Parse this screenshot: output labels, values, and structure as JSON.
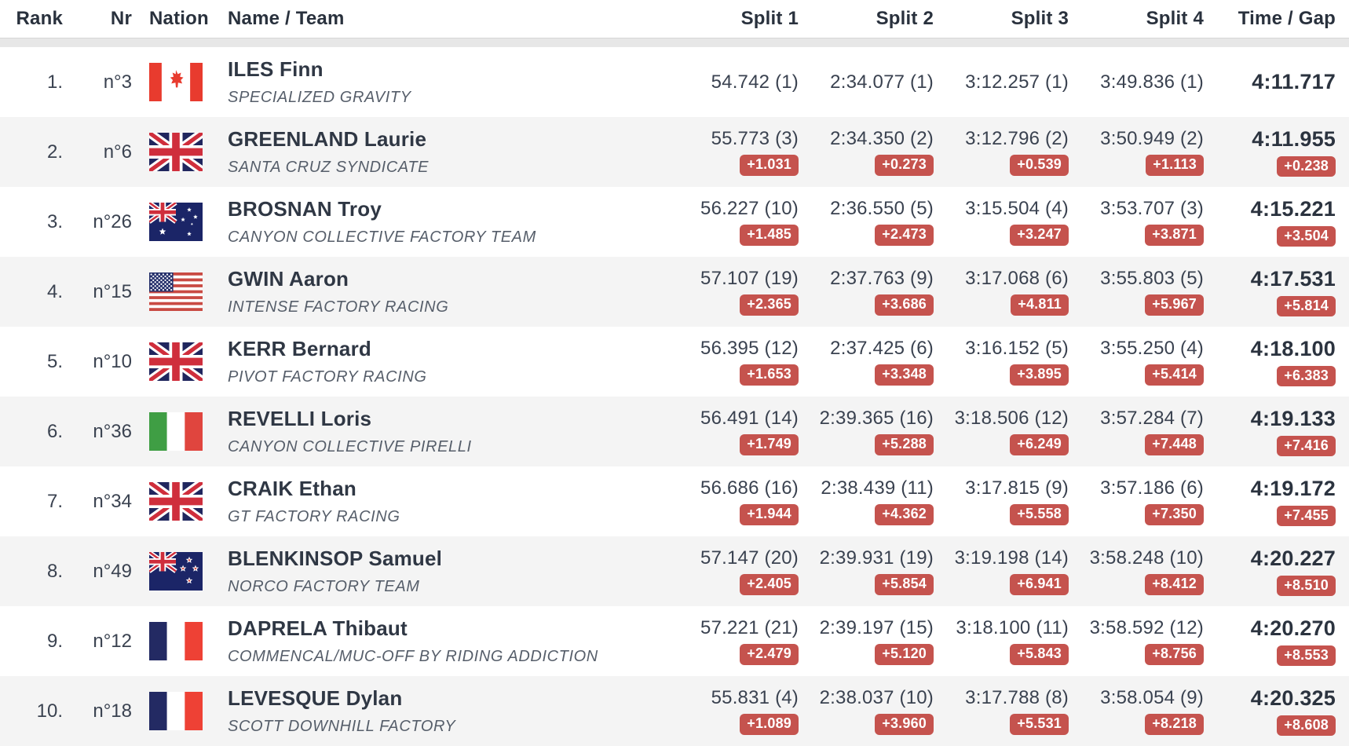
{
  "table": {
    "columns": [
      "Rank",
      "Nr",
      "Nation",
      "Name / Team",
      "Split 1",
      "Split 2",
      "Split 3",
      "Split 4",
      "Time / Gap"
    ],
    "rows": [
      {
        "rank": "1.",
        "nr": "n°3",
        "nation": "ca",
        "name": "ILES Finn",
        "team": "SPECIALIZED GRAVITY",
        "splits": [
          {
            "value": "54.742 (1)",
            "gap": null
          },
          {
            "value": "2:34.077 (1)",
            "gap": null
          },
          {
            "value": "3:12.257 (1)",
            "gap": null
          },
          {
            "value": "3:49.836 (1)",
            "gap": null
          }
        ],
        "total": {
          "value": "4:11.717",
          "gap": null
        }
      },
      {
        "rank": "2.",
        "nr": "n°6",
        "nation": "gb",
        "name": "GREENLAND Laurie",
        "team": "SANTA CRUZ SYNDICATE",
        "splits": [
          {
            "value": "55.773 (3)",
            "gap": "+1.031"
          },
          {
            "value": "2:34.350 (2)",
            "gap": "+0.273"
          },
          {
            "value": "3:12.796 (2)",
            "gap": "+0.539"
          },
          {
            "value": "3:50.949 (2)",
            "gap": "+1.113"
          }
        ],
        "total": {
          "value": "4:11.955",
          "gap": "+0.238"
        }
      },
      {
        "rank": "3.",
        "nr": "n°26",
        "nation": "au",
        "name": "BROSNAN Troy",
        "team": "CANYON COLLECTIVE FACTORY TEAM",
        "splits": [
          {
            "value": "56.227 (10)",
            "gap": "+1.485"
          },
          {
            "value": "2:36.550 (5)",
            "gap": "+2.473"
          },
          {
            "value": "3:15.504 (4)",
            "gap": "+3.247"
          },
          {
            "value": "3:53.707 (3)",
            "gap": "+3.871"
          }
        ],
        "total": {
          "value": "4:15.221",
          "gap": "+3.504"
        }
      },
      {
        "rank": "4.",
        "nr": "n°15",
        "nation": "us",
        "name": "GWIN Aaron",
        "team": "INTENSE FACTORY RACING",
        "splits": [
          {
            "value": "57.107 (19)",
            "gap": "+2.365"
          },
          {
            "value": "2:37.763 (9)",
            "gap": "+3.686"
          },
          {
            "value": "3:17.068 (6)",
            "gap": "+4.811"
          },
          {
            "value": "3:55.803 (5)",
            "gap": "+5.967"
          }
        ],
        "total": {
          "value": "4:17.531",
          "gap": "+5.814"
        }
      },
      {
        "rank": "5.",
        "nr": "n°10",
        "nation": "gb",
        "name": "KERR Bernard",
        "team": "PIVOT FACTORY RACING",
        "splits": [
          {
            "value": "56.395 (12)",
            "gap": "+1.653"
          },
          {
            "value": "2:37.425 (6)",
            "gap": "+3.348"
          },
          {
            "value": "3:16.152 (5)",
            "gap": "+3.895"
          },
          {
            "value": "3:55.250 (4)",
            "gap": "+5.414"
          }
        ],
        "total": {
          "value": "4:18.100",
          "gap": "+6.383"
        }
      },
      {
        "rank": "6.",
        "nr": "n°36",
        "nation": "it",
        "name": "REVELLI Loris",
        "team": "CANYON COLLECTIVE PIRELLI",
        "splits": [
          {
            "value": "56.491 (14)",
            "gap": "+1.749"
          },
          {
            "value": "2:39.365 (16)",
            "gap": "+5.288"
          },
          {
            "value": "3:18.506 (12)",
            "gap": "+6.249"
          },
          {
            "value": "3:57.284 (7)",
            "gap": "+7.448"
          }
        ],
        "total": {
          "value": "4:19.133",
          "gap": "+7.416"
        }
      },
      {
        "rank": "7.",
        "nr": "n°34",
        "nation": "gb",
        "name": "CRAIK Ethan",
        "team": "GT FACTORY RACING",
        "splits": [
          {
            "value": "56.686 (16)",
            "gap": "+1.944"
          },
          {
            "value": "2:38.439 (11)",
            "gap": "+4.362"
          },
          {
            "value": "3:17.815 (9)",
            "gap": "+5.558"
          },
          {
            "value": "3:57.186 (6)",
            "gap": "+7.350"
          }
        ],
        "total": {
          "value": "4:19.172",
          "gap": "+7.455"
        }
      },
      {
        "rank": "8.",
        "nr": "n°49",
        "nation": "nz",
        "name": "BLENKINSOP Samuel",
        "team": "NORCO FACTORY TEAM",
        "splits": [
          {
            "value": "57.147 (20)",
            "gap": "+2.405"
          },
          {
            "value": "2:39.931 (19)",
            "gap": "+5.854"
          },
          {
            "value": "3:19.198 (14)",
            "gap": "+6.941"
          },
          {
            "value": "3:58.248 (10)",
            "gap": "+8.412"
          }
        ],
        "total": {
          "value": "4:20.227",
          "gap": "+8.510"
        }
      },
      {
        "rank": "9.",
        "nr": "n°12",
        "nation": "fr",
        "name": "DAPRELA Thibaut",
        "team": "COMMENCAL/MUC-OFF BY RIDING ADDICTION",
        "splits": [
          {
            "value": "57.221 (21)",
            "gap": "+2.479"
          },
          {
            "value": "2:39.197 (15)",
            "gap": "+5.120"
          },
          {
            "value": "3:18.100 (11)",
            "gap": "+5.843"
          },
          {
            "value": "3:58.592 (12)",
            "gap": "+8.756"
          }
        ],
        "total": {
          "value": "4:20.270",
          "gap": "+8.553"
        }
      },
      {
        "rank": "10.",
        "nr": "n°18",
        "nation": "fr",
        "name": "LEVESQUE Dylan",
        "team": "SCOTT DOWNHILL FACTORY",
        "splits": [
          {
            "value": "55.831 (4)",
            "gap": "+1.089"
          },
          {
            "value": "2:38.037 (10)",
            "gap": "+3.960"
          },
          {
            "value": "3:17.788 (8)",
            "gap": "+5.531"
          },
          {
            "value": "3:58.054 (9)",
            "gap": "+8.218"
          }
        ],
        "total": {
          "value": "4:20.325",
          "gap": "+8.608"
        }
      }
    ]
  },
  "colors": {
    "badge_red": "#c5534e",
    "row_alt_bg": "#f4f4f4",
    "header_band": "#e7e7e7",
    "text_dark": "#3a4250",
    "text_team": "#565e6a"
  }
}
